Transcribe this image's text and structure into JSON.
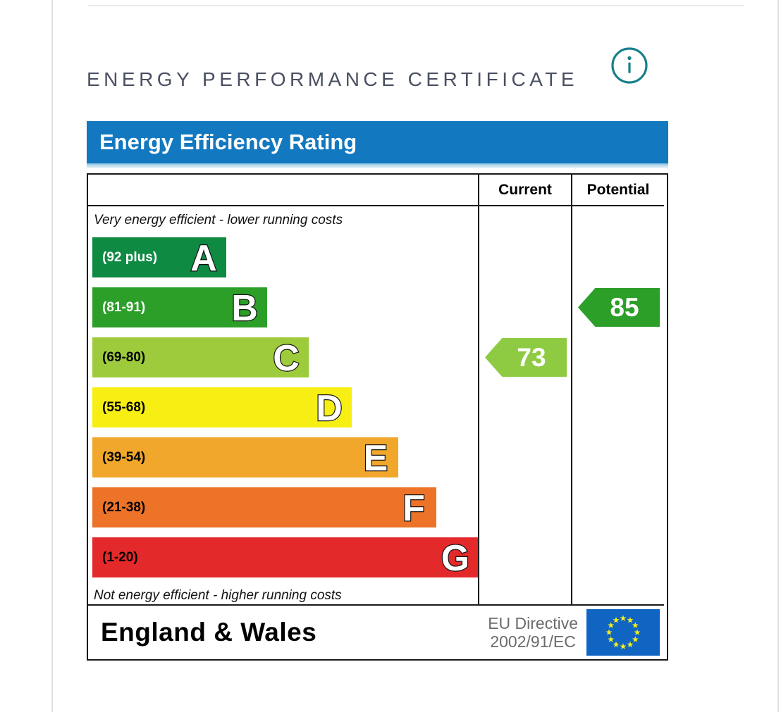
{
  "page": {
    "heading": "ENERGY PERFORMANCE CERTIFICATE",
    "heading_color": "#4a5062",
    "info_icon": "info-circle",
    "info_icon_color": "#17808a"
  },
  "chart_data": {
    "type": "bar",
    "title": "Energy Efficiency Rating",
    "title_bar_color": "#1278bf",
    "column_headers": [
      "Current",
      "Potential"
    ],
    "top_note": "Very energy efficient - lower running costs",
    "bottom_note": "Not energy efficient - higher running costs",
    "axis": {
      "scale_min": 1,
      "scale_max": 100,
      "orientation": "horizontal-bands"
    },
    "bands": [
      {
        "letter": "A",
        "range_label": "(92 plus)",
        "min": 92,
        "max": 100,
        "color": "#0e8a43",
        "label_color": "#ffffff",
        "width_pct": 34.7
      },
      {
        "letter": "B",
        "range_label": "(81-91)",
        "min": 81,
        "max": 91,
        "color": "#2c9f29",
        "label_color": "#ffffff",
        "width_pct": 45.3
      },
      {
        "letter": "C",
        "range_label": "(69-80)",
        "min": 69,
        "max": 80,
        "color": "#9dcb3c",
        "label_color": "#000000",
        "width_pct": 56.1
      },
      {
        "letter": "D",
        "range_label": "(55-68)",
        "min": 55,
        "max": 68,
        "color": "#f7ee13",
        "label_color": "#000000",
        "width_pct": 67.2
      },
      {
        "letter": "E",
        "range_label": "(39-54)",
        "min": 39,
        "max": 54,
        "color": "#f1a72b",
        "label_color": "#000000",
        "width_pct": 79.3
      },
      {
        "letter": "F",
        "range_label": "(21-38)",
        "min": 21,
        "max": 38,
        "color": "#ed7328",
        "label_color": "#000000",
        "width_pct": 89.2
      },
      {
        "letter": "G",
        "range_label": "(1-20)",
        "min": 1,
        "max": 20,
        "color": "#e4292b",
        "label_color": "#000000",
        "width_pct": 100
      }
    ],
    "ratings": {
      "current": {
        "value": 73,
        "band": "C",
        "band_index": 2,
        "color": "#8ecb43"
      },
      "potential": {
        "value": 85,
        "band": "B",
        "band_index": 1,
        "color": "#2c9f29"
      }
    },
    "footer": {
      "region": "England & Wales",
      "directive": [
        "EU Directive",
        "2002/91/EC"
      ],
      "flag": {
        "field_color": "#1064c2",
        "star_color": "#f8ef1a"
      }
    }
  }
}
